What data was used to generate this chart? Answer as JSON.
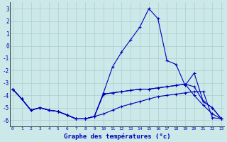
{
  "title": "Graphe des températures (°c)",
  "background_color": "#cce8e8",
  "grid_color": "#aacfcf",
  "line_color": "#0000bb",
  "ylim": [
    -6.5,
    3.5
  ],
  "yticks": [
    -6,
    -5,
    -4,
    -3,
    -2,
    -1,
    0,
    1,
    2,
    3
  ],
  "xlim": [
    -0.3,
    23.3
  ],
  "s1": [
    -3.5,
    -4.3,
    -5.2,
    -5.0,
    -5.2,
    -5.3,
    -5.6,
    -5.9,
    -5.9,
    -5.7,
    -5.5,
    -5.2,
    -4.9,
    -4.7,
    -4.5,
    -4.3,
    -4.1,
    -4.0,
    -3.9,
    -3.8,
    -3.7,
    -3.7,
    -5.8,
    -5.9
  ],
  "s2": [
    -3.5,
    -4.3,
    -5.2,
    -5.0,
    -5.2,
    -5.3,
    -5.6,
    -5.9,
    -5.9,
    -5.7,
    -3.9,
    -3.8,
    -3.7,
    -3.6,
    -3.5,
    -3.5,
    -3.4,
    -3.3,
    -3.2,
    -3.1,
    -4.0,
    -4.8,
    -5.5,
    -5.9
  ],
  "s3": [
    -3.5,
    -4.3,
    -5.2,
    -5.0,
    -5.2,
    -5.3,
    -5.6,
    -5.9,
    -5.9,
    -5.7,
    -3.9,
    -3.8,
    -3.7,
    -3.6,
    -3.5,
    -3.5,
    -3.4,
    -3.3,
    -3.2,
    -3.1,
    -3.3,
    -4.5,
    -5.0,
    -5.9
  ],
  "s4": [
    -3.5,
    -4.3,
    -5.2,
    -5.0,
    -5.2,
    -5.3,
    -5.6,
    -5.9,
    -5.9,
    -5.7,
    -3.8,
    -1.7,
    -0.5,
    0.5,
    1.5,
    3.0,
    2.2,
    -1.2,
    -1.5,
    -3.2,
    -2.2,
    -4.5,
    -5.0,
    -5.9
  ]
}
